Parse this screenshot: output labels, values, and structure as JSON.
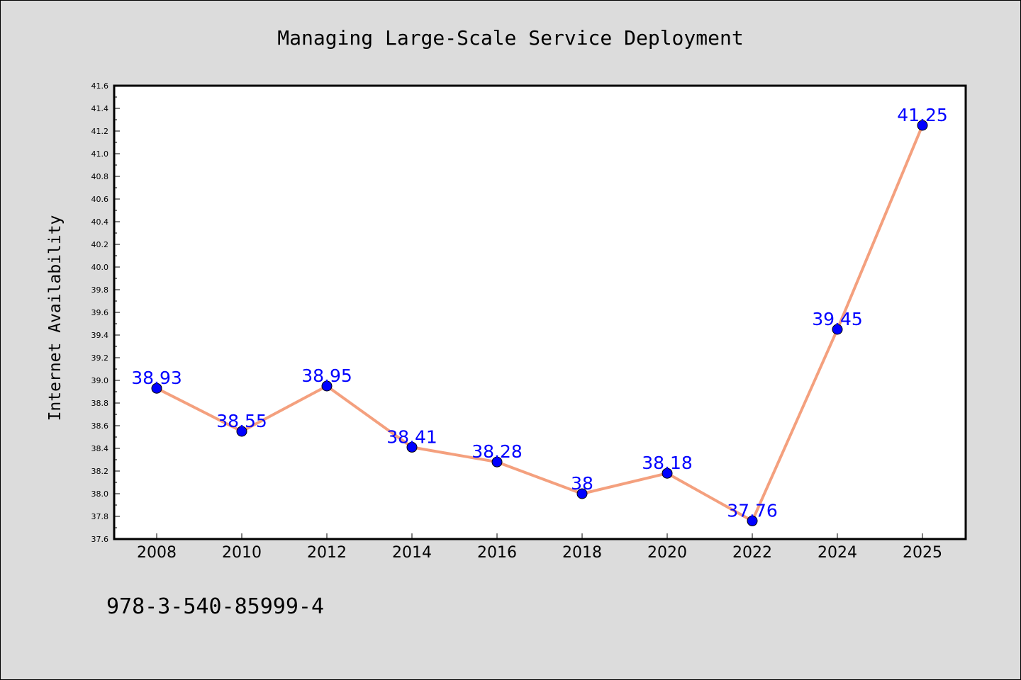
{
  "chart_data": {
    "type": "line",
    "title": "Managing Large-Scale Service Deployment",
    "xlabel": "",
    "ylabel": "Internet Availability",
    "categories": [
      "2008",
      "2010",
      "2012",
      "2014",
      "2016",
      "2018",
      "2020",
      "2022",
      "2024",
      "2025"
    ],
    "series": [
      {
        "values": [
          38.93,
          38.55,
          38.95,
          38.41,
          38.28,
          38.0,
          38.18,
          37.76,
          39.45,
          41.25
        ],
        "labels": [
          "38.93",
          "38.55",
          "38.95",
          "38.41",
          "38.28",
          "38",
          "38.18",
          "37.76",
          "39.45",
          "41.25"
        ],
        "line_color": "#f4a07e",
        "marker_color": "#0000ff"
      }
    ],
    "ylim": [
      37.6,
      41.6
    ],
    "yticks": [
      "37.6",
      "37.8",
      "38.0",
      "38.2",
      "38.4",
      "38.6",
      "38.8",
      "39.0",
      "39.2",
      "39.4",
      "39.6",
      "39.8",
      "40.0",
      "40.2",
      "40.4",
      "40.6",
      "40.8",
      "41.0",
      "41.2",
      "41.4",
      "41.6"
    ],
    "grid": false,
    "label_color": "#0000ff",
    "footnote": "978-3-540-85999-4"
  }
}
